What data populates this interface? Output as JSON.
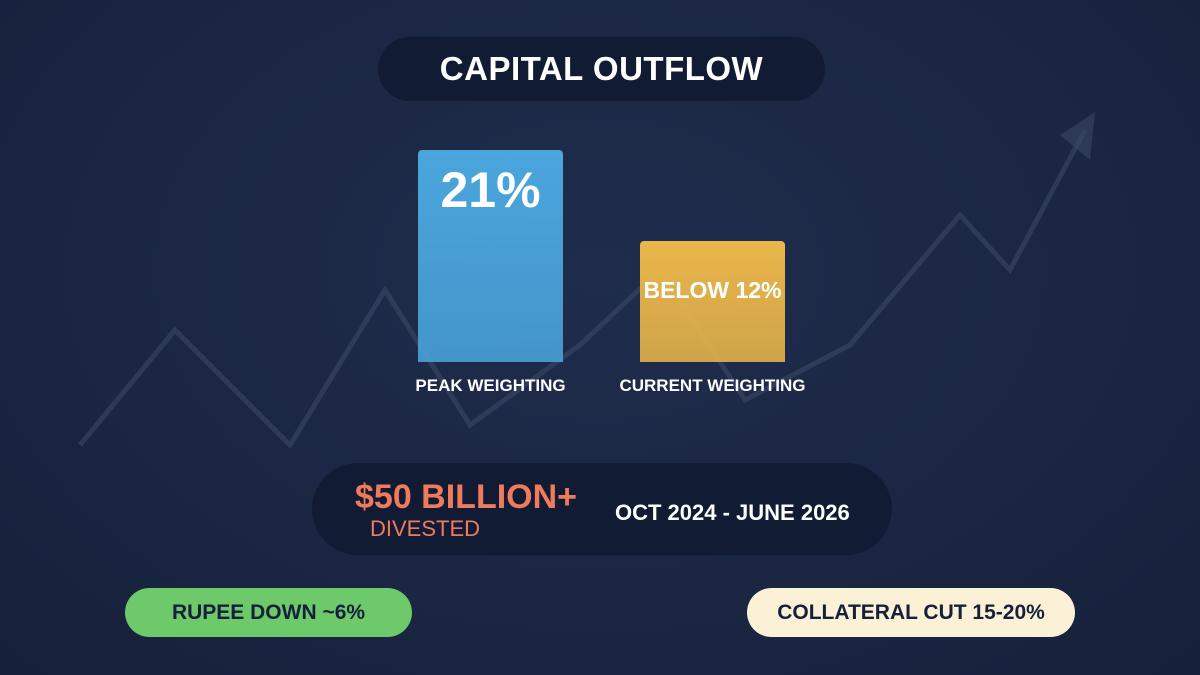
{
  "chart_data": {
    "type": "bar",
    "title": "CAPITAL OUTFLOW",
    "categories": [
      "PEAK WEIGHTING",
      "CURRENT WEIGHTING"
    ],
    "values": [
      21,
      12
    ],
    "value_labels": [
      "21%",
      "BELOW 12%"
    ],
    "colors": [
      "#4aa6dd",
      "#eab64a"
    ],
    "ylim": [
      0,
      25
    ]
  },
  "summary": {
    "amount": "$50 BILLION+",
    "label": "DIVESTED",
    "period": "OCT 2024 - JUNE 2026"
  },
  "badges": [
    "RUPEE DOWN ~6%",
    "COLLATERAL CUT 15-20%"
  ]
}
